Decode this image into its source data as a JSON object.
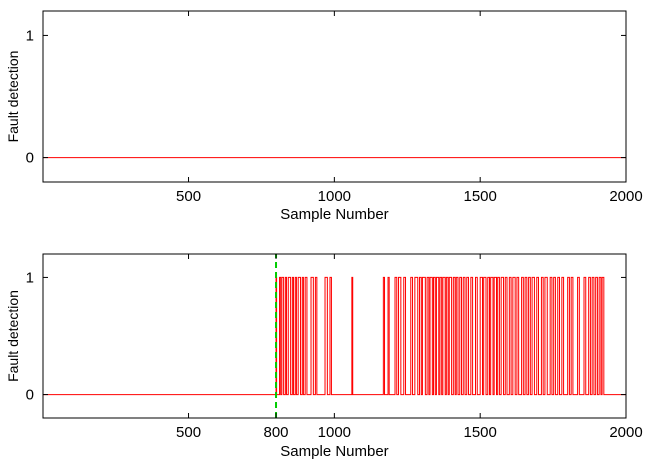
{
  "chart_data": [
    {
      "type": "line",
      "xlabel": "Sample Number",
      "ylabel": "Fault detection",
      "xlim": [
        1,
        2000
      ],
      "ylim": [
        -0.2,
        1.2
      ],
      "x_ticks": [
        500,
        1000,
        1500,
        2000
      ],
      "y_ticks": [
        0,
        1
      ],
      "grid": false,
      "series": [
        {
          "color": "#ff0000",
          "style": "step",
          "points": [
            [
              1,
              0
            ],
            [
              2000,
              0
            ]
          ]
        }
      ]
    },
    {
      "type": "line",
      "xlabel": "Sample Number",
      "ylabel": "Fault detection",
      "xlim": [
        1,
        2000
      ],
      "ylim": [
        -0.2,
        1.2
      ],
      "x_ticks": [
        500,
        800,
        1000,
        1500,
        2000
      ],
      "y_ticks": [
        0,
        1
      ],
      "grid": false,
      "series": [
        {
          "color": "#ff0000",
          "style": "step",
          "baseline": 0,
          "pulses": [
            [
              800,
              802
            ],
            [
              812,
              816
            ],
            [
              820,
              826
            ],
            [
              832,
              836
            ],
            [
              842,
              850
            ],
            [
              856,
              860
            ],
            [
              866,
              870
            ],
            [
              876,
              884
            ],
            [
              890,
              894
            ],
            [
              900,
              906
            ],
            [
              920,
              928
            ],
            [
              935,
              940
            ],
            [
              968,
              976
            ],
            [
              985,
              990
            ],
            [
              1060,
              1063
            ],
            [
              1168,
              1172
            ],
            [
              1184,
              1188
            ],
            [
              1208,
              1214
            ],
            [
              1220,
              1228
            ],
            [
              1238,
              1244
            ],
            [
              1262,
              1268
            ],
            [
              1276,
              1286
            ],
            [
              1292,
              1298
            ],
            [
              1302,
              1312
            ],
            [
              1318,
              1324
            ],
            [
              1328,
              1336
            ],
            [
              1340,
              1346
            ],
            [
              1350,
              1358
            ],
            [
              1362,
              1368
            ],
            [
              1372,
              1380
            ],
            [
              1384,
              1390
            ],
            [
              1394,
              1402
            ],
            [
              1408,
              1414
            ],
            [
              1418,
              1424
            ],
            [
              1430,
              1436
            ],
            [
              1442,
              1448
            ],
            [
              1454,
              1460
            ],
            [
              1468,
              1474
            ],
            [
              1484,
              1490
            ],
            [
              1500,
              1508
            ],
            [
              1512,
              1520
            ],
            [
              1526,
              1532
            ],
            [
              1536,
              1544
            ],
            [
              1548,
              1556
            ],
            [
              1560,
              1566
            ],
            [
              1572,
              1580
            ],
            [
              1586,
              1592
            ],
            [
              1600,
              1606
            ],
            [
              1612,
              1620
            ],
            [
              1626,
              1632
            ],
            [
              1642,
              1648
            ],
            [
              1654,
              1660
            ],
            [
              1666,
              1672
            ],
            [
              1678,
              1686
            ],
            [
              1694,
              1700
            ],
            [
              1710,
              1716
            ],
            [
              1722,
              1730
            ],
            [
              1740,
              1746
            ],
            [
              1752,
              1758
            ],
            [
              1766,
              1772
            ],
            [
              1780,
              1786
            ],
            [
              1800,
              1806
            ],
            [
              1812,
              1818
            ],
            [
              1834,
              1840
            ],
            [
              1856,
              1862
            ],
            [
              1872,
              1878
            ],
            [
              1884,
              1890
            ],
            [
              1896,
              1902
            ],
            [
              1908,
              1914
            ],
            [
              1918,
              1924
            ]
          ]
        },
        {
          "color": "#00cc00",
          "style": "dashed-vertical",
          "x": 800,
          "y_range": [
            -0.2,
            1.2
          ]
        }
      ]
    }
  ]
}
